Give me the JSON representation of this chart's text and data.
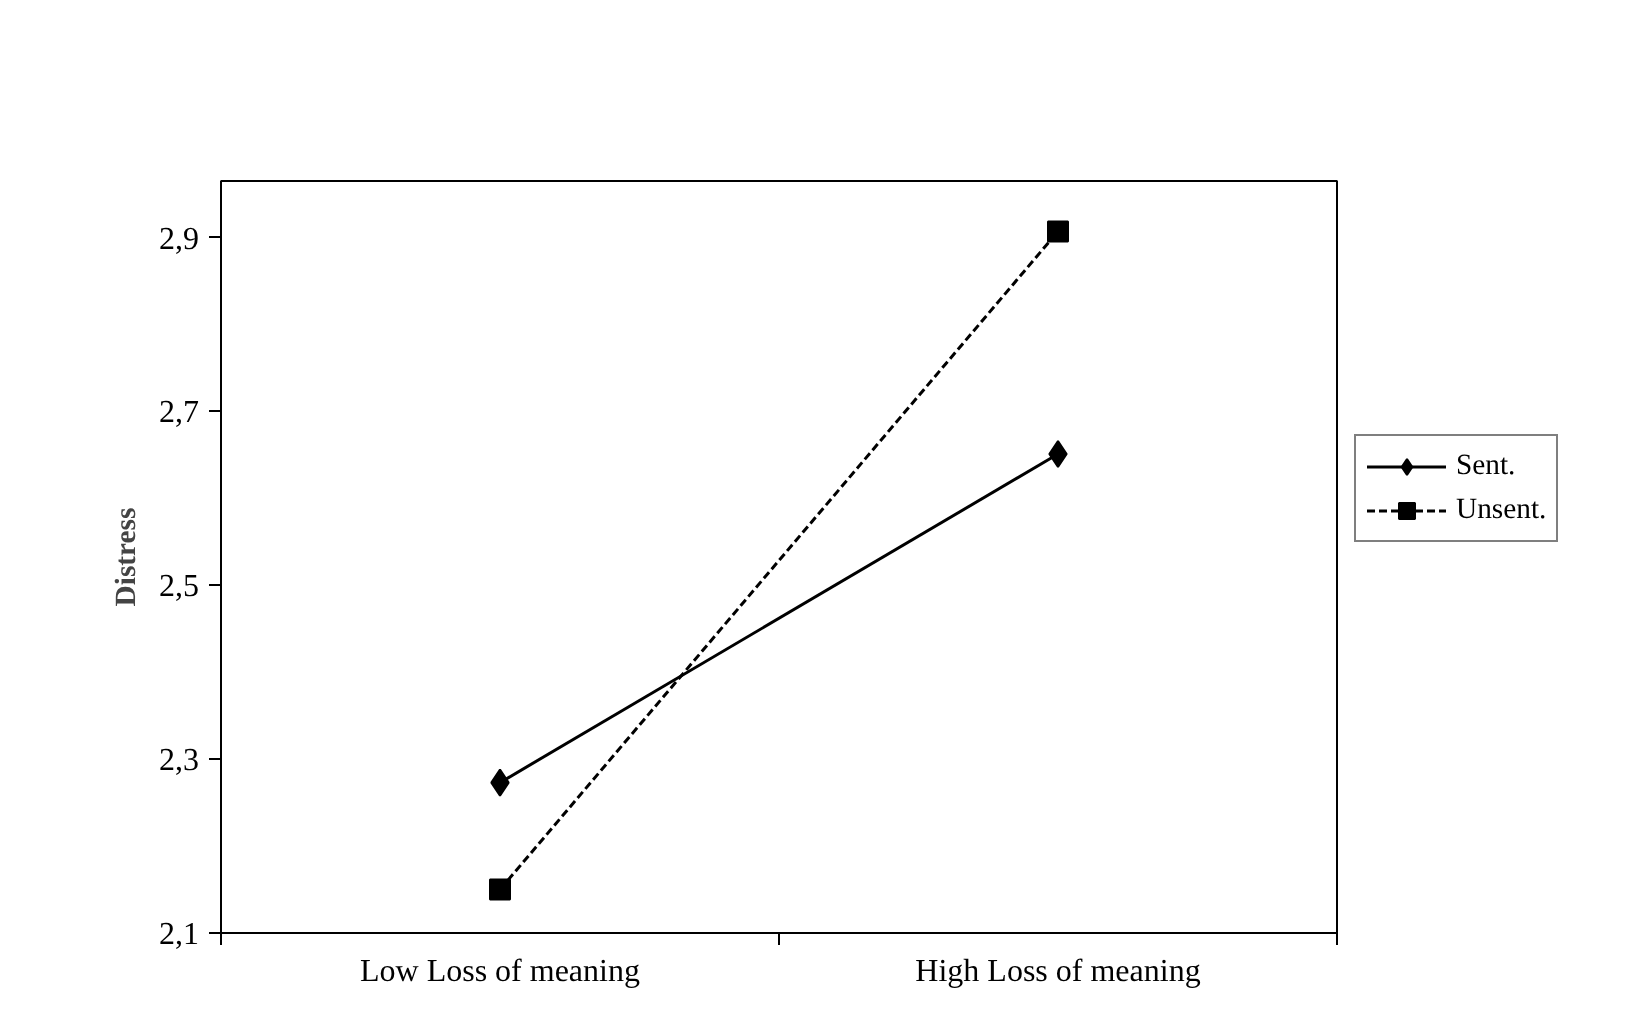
{
  "chart_data": {
    "type": "line",
    "ylabel": "Distress",
    "categories": [
      "Low Loss of meaning",
      "High Loss of meaning"
    ],
    "series": [
      {
        "name": "Sent.",
        "color": "#000000",
        "values": [
          2.273,
          2.651
        ],
        "marker": "diamond",
        "line_style": "solid"
      },
      {
        "name": "Unsent.",
        "color": "#000000",
        "values": [
          2.15,
          2.907
        ],
        "marker": "square",
        "line_style": "dashed"
      }
    ],
    "ylim": [
      2.1,
      2.965
    ],
    "yticks": [
      {
        "value": 2.1,
        "label": "2,1"
      },
      {
        "value": 2.3,
        "label": "2,3"
      },
      {
        "value": 2.5,
        "label": "2,5"
      },
      {
        "value": 2.7,
        "label": "2,7"
      },
      {
        "value": 2.9,
        "label": "2,9"
      }
    ],
    "grid": false,
    "legend": "right"
  }
}
